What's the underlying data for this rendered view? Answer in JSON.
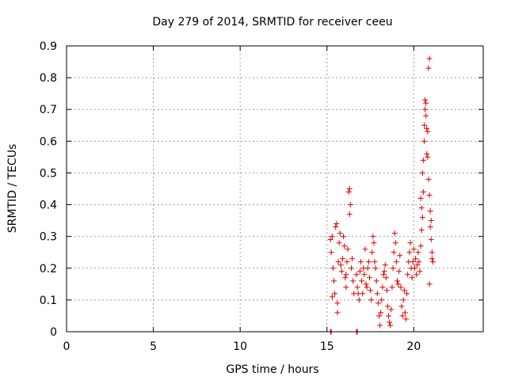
{
  "chart_data": {
    "type": "scatter",
    "title": "Day 279 of 2014, SRMTID for receiver ceeu",
    "xlabel": "GPS time / hours",
    "ylabel": "SRMTID / TECUs",
    "xlim": [
      0,
      24
    ],
    "ylim": [
      0,
      0.9
    ],
    "xticks": [
      "0",
      "5",
      "10",
      "15",
      "20"
    ],
    "yticks": [
      "0",
      "0.1",
      "0.2",
      "0.3",
      "0.4",
      "0.5",
      "0.6",
      "0.7",
      "0.8",
      "0.9"
    ],
    "grid": true,
    "marker": "+",
    "color": "#e00000",
    "series": [
      {
        "points": [
          [
            15.2,
            0.0
          ],
          [
            15.25,
            0.0
          ],
          [
            16.7,
            0.0
          ],
          [
            16.75,
            0.0
          ],
          [
            15.2,
            0.29
          ],
          [
            15.25,
            0.25
          ],
          [
            15.3,
            0.3
          ],
          [
            15.35,
            0.2
          ],
          [
            15.4,
            0.16
          ],
          [
            15.45,
            0.12
          ],
          [
            15.3,
            0.11
          ],
          [
            15.5,
            0.33
          ],
          [
            15.55,
            0.34
          ],
          [
            15.6,
            0.09
          ],
          [
            15.6,
            0.06
          ],
          [
            15.65,
            0.22
          ],
          [
            15.7,
            0.28
          ],
          [
            15.75,
            0.31
          ],
          [
            15.8,
            0.21
          ],
          [
            15.85,
            0.19
          ],
          [
            15.9,
            0.23
          ],
          [
            15.95,
            0.3
          ],
          [
            16.0,
            0.27
          ],
          [
            16.05,
            0.17
          ],
          [
            16.1,
            0.14
          ],
          [
            16.1,
            0.18
          ],
          [
            16.15,
            0.22
          ],
          [
            16.2,
            0.26
          ],
          [
            16.25,
            0.44
          ],
          [
            16.3,
            0.45
          ],
          [
            16.3,
            0.37
          ],
          [
            16.35,
            0.4
          ],
          [
            16.4,
            0.2
          ],
          [
            16.45,
            0.23
          ],
          [
            16.5,
            0.16
          ],
          [
            16.55,
            0.12
          ],
          [
            16.7,
            0.18
          ],
          [
            16.75,
            0.14
          ],
          [
            16.8,
            0.12
          ],
          [
            16.85,
            0.1
          ],
          [
            16.9,
            0.19
          ],
          [
            16.95,
            0.22
          ],
          [
            17.0,
            0.16
          ],
          [
            17.05,
            0.12
          ],
          [
            17.1,
            0.2
          ],
          [
            17.15,
            0.18
          ],
          [
            17.2,
            0.26
          ],
          [
            17.25,
            0.15
          ],
          [
            17.3,
            0.14
          ],
          [
            17.35,
            0.2
          ],
          [
            17.4,
            0.22
          ],
          [
            17.45,
            0.17
          ],
          [
            17.5,
            0.13
          ],
          [
            17.55,
            0.1
          ],
          [
            17.6,
            0.25
          ],
          [
            17.65,
            0.3
          ],
          [
            17.7,
            0.28
          ],
          [
            17.75,
            0.22
          ],
          [
            17.8,
            0.2
          ],
          [
            17.85,
            0.16
          ],
          [
            17.9,
            0.12
          ],
          [
            17.95,
            0.09
          ],
          [
            18.0,
            0.05
          ],
          [
            18.05,
            0.02
          ],
          [
            18.1,
            0.06
          ],
          [
            18.15,
            0.1
          ],
          [
            18.2,
            0.14
          ],
          [
            18.25,
            0.18
          ],
          [
            18.3,
            0.19
          ],
          [
            18.35,
            0.21
          ],
          [
            18.4,
            0.17
          ],
          [
            18.45,
            0.13
          ],
          [
            18.5,
            0.08
          ],
          [
            18.55,
            0.05
          ],
          [
            18.6,
            0.03
          ],
          [
            18.65,
            0.02
          ],
          [
            18.7,
            0.07
          ],
          [
            18.75,
            0.14
          ],
          [
            18.8,
            0.2
          ],
          [
            18.85,
            0.25
          ],
          [
            18.9,
            0.31
          ],
          [
            18.95,
            0.28
          ],
          [
            19.0,
            0.22
          ],
          [
            19.05,
            0.16
          ],
          [
            19.1,
            0.15
          ],
          [
            19.15,
            0.19
          ],
          [
            19.2,
            0.24
          ],
          [
            19.25,
            0.14
          ],
          [
            19.3,
            0.08
          ],
          [
            19.35,
            0.05
          ],
          [
            19.4,
            0.1
          ],
          [
            19.45,
            0.13
          ],
          [
            19.5,
            0.06
          ],
          [
            19.55,
            0.04
          ],
          [
            19.6,
            0.12
          ],
          [
            19.65,
            0.18
          ],
          [
            19.7,
            0.22
          ],
          [
            19.75,
            0.25
          ],
          [
            19.8,
            0.28
          ],
          [
            19.85,
            0.2
          ],
          [
            19.9,
            0.17
          ],
          [
            19.95,
            0.22
          ],
          [
            20.0,
            0.26
          ],
          [
            20.05,
            0.2
          ],
          [
            20.1,
            0.23
          ],
          [
            20.15,
            0.18
          ],
          [
            20.2,
            0.21
          ],
          [
            20.25,
            0.25
          ],
          [
            20.3,
            0.22
          ],
          [
            20.35,
            0.19
          ],
          [
            20.4,
            0.27
          ],
          [
            20.4,
            0.42
          ],
          [
            20.45,
            0.32
          ],
          [
            20.45,
            0.39
          ],
          [
            20.5,
            0.36
          ],
          [
            20.5,
            0.5
          ],
          [
            20.55,
            0.54
          ],
          [
            20.55,
            0.44
          ],
          [
            20.6,
            0.65
          ],
          [
            20.6,
            0.6
          ],
          [
            20.65,
            0.7
          ],
          [
            20.65,
            0.73
          ],
          [
            20.7,
            0.68
          ],
          [
            20.7,
            0.72
          ],
          [
            20.75,
            0.64
          ],
          [
            20.75,
            0.56
          ],
          [
            20.8,
            0.55
          ],
          [
            20.8,
            0.63
          ],
          [
            20.85,
            0.48
          ],
          [
            20.85,
            0.83
          ],
          [
            20.9,
            0.86
          ],
          [
            20.9,
            0.43
          ],
          [
            20.9,
            0.15
          ],
          [
            20.95,
            0.38
          ],
          [
            20.95,
            0.33
          ],
          [
            21.0,
            0.29
          ],
          [
            21.0,
            0.35
          ],
          [
            21.05,
            0.25
          ],
          [
            21.05,
            0.23
          ],
          [
            21.1,
            0.22
          ]
        ]
      }
    ]
  }
}
